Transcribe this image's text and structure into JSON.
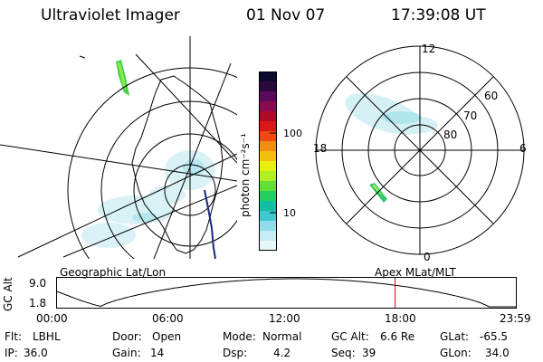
{
  "header": {
    "instrument": "Ultraviolet Imager",
    "date": "01 Nov 07",
    "time": "17:39:08 UT"
  },
  "colorbar": {
    "unit_label": "photon cm⁻²s⁻¹",
    "tick_100": "100",
    "tick_10": "10",
    "colors": [
      "#0c0a2e",
      "#2a0a3a",
      "#5a0a5a",
      "#8a0a50",
      "#b00a2a",
      "#d81818",
      "#f04a10",
      "#f48c10",
      "#f4c010",
      "#e8f010",
      "#b0f020",
      "#60e030",
      "#20d060",
      "#10c0a0",
      "#40c8d0",
      "#90dce8",
      "#c8eef4",
      "#e8f8fa"
    ]
  },
  "maps": {
    "left_title": "Geographic Lat/Lon",
    "right_title": "Apex MLat/MLT",
    "mlt_labels": {
      "top": "12",
      "bottom": "0",
      "left": "18",
      "right": "6"
    },
    "lat_labels": [
      "60",
      "70",
      "80"
    ]
  },
  "altitude_plot": {
    "ylabel": "GC Alt",
    "ymax_label": "9.0",
    "ymin_label": "1.8",
    "x_ticks": [
      "00:00",
      "06:00",
      "12:00",
      "18:00",
      "23:59"
    ],
    "current_time_marker_hours": 17.65,
    "marker_color": "#cc0000"
  },
  "status": {
    "filter_label": "Flt:",
    "filter_value": "LBHL",
    "door_label": "Door:",
    "door_value": "Open",
    "mode_label": "Mode:",
    "mode_value": "Normal",
    "gcalt_label": "GC Alt:",
    "gcalt_value": "6.6 Re",
    "glat_label": "GLat:",
    "glat_value": "-65.5",
    "ip_label": "IP:",
    "ip_value": "36.0",
    "gain_label": "Gain:",
    "gain_value": "14",
    "dsp_label": "Dsp:",
    "dsp_value": "4.2",
    "seq_label": "Seq:",
    "seq_value": "39",
    "glon_label": "GLon:",
    "glon_value": "34.0"
  }
}
